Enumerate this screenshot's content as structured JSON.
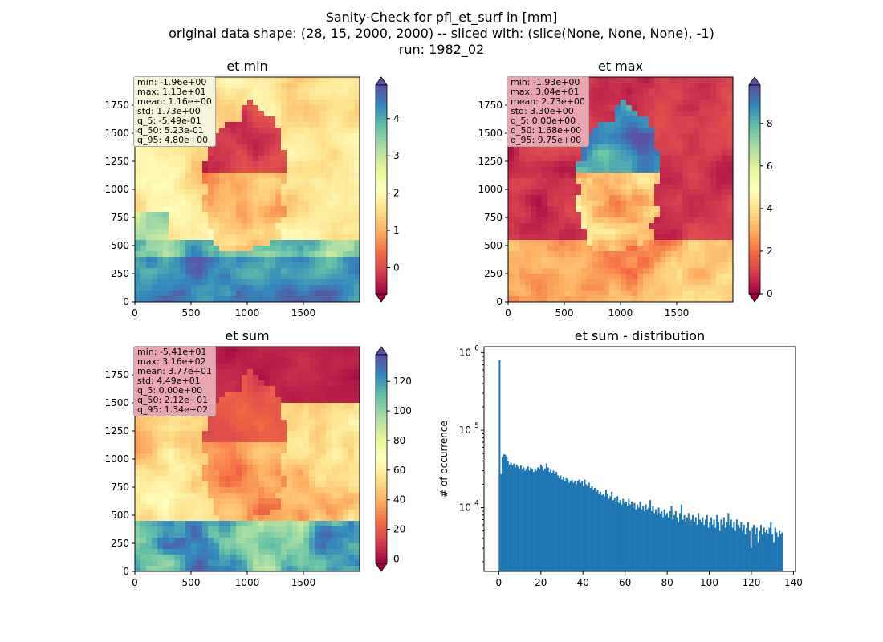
{
  "figure": {
    "title_lines": [
      "Sanity-Check for pfl_et_surf in [mm]",
      "original data shape: (28, 15, 2000, 2000) -- sliced with: (slice(None, None, None), -1)",
      "run: 1982_02"
    ]
  },
  "colormap": "Spectral",
  "panels": [
    {
      "title": "et min",
      "xticks": [
        0,
        500,
        1000,
        1500
      ],
      "yticks": [
        0,
        250,
        500,
        750,
        1000,
        1250,
        1500,
        1750
      ],
      "range": [
        0,
        2000
      ],
      "colorbar": {
        "min": -0.7,
        "max": 4.9,
        "ticks": [
          0,
          1,
          2,
          3,
          4
        ],
        "extend": "both"
      },
      "stats_box_color": "#f5f5dc",
      "stats": [
        "min: -1.96e+00",
        "max: 1.13e+01",
        "mean: 1.16e+00",
        "std: 1.73e+00",
        "q_5: -5.49e-01",
        "q_50: 5.23e-01",
        "q_95: 4.80e+00"
      ]
    },
    {
      "title": "et max",
      "xticks": [
        0,
        500,
        1000,
        1500
      ],
      "yticks": [
        0,
        250,
        500,
        750,
        1000,
        1250,
        1500,
        1750
      ],
      "range": [
        0,
        2000
      ],
      "colorbar": {
        "min": 0,
        "max": 9.8,
        "ticks": [
          0,
          2,
          4,
          6,
          8
        ],
        "extend": "both"
      },
      "stats_box_color": "#e8a6b0",
      "stats": [
        "min: -1.93e+00",
        "max: 3.04e+01",
        "mean: 2.73e+00",
        "std: 3.30e+00",
        "q_5: 0.00e+00",
        "q_50: 1.68e+00",
        "q_95: 9.75e+00"
      ]
    },
    {
      "title": "et sum",
      "xticks": [
        0,
        500,
        1000,
        1500
      ],
      "yticks": [
        0,
        250,
        500,
        750,
        1000,
        1250,
        1500,
        1750
      ],
      "range": [
        0,
        2000
      ],
      "colorbar": {
        "min": -3,
        "max": 138,
        "ticks": [
          0,
          20,
          40,
          60,
          80,
          100,
          120
        ],
        "extend": "both"
      },
      "stats_box_color": "#e8a6b0",
      "stats": [
        "min: -5.41e+01",
        "max: 3.16e+02",
        "mean: 3.77e+01",
        "std: 4.49e+01",
        "q_5: 0.00e+00",
        "q_50: 2.12e+01",
        "q_95: 1.34e+02"
      ]
    }
  ],
  "chart_data": {
    "type": "bar",
    "title": "et sum - distribution",
    "xlabel": "",
    "ylabel": "# of occurrence",
    "yscale": "log",
    "xlim": [
      -7,
      141
    ],
    "ylim": [
      1500,
      1200000
    ],
    "xticks": [
      0,
      20,
      40,
      60,
      80,
      100,
      120,
      140
    ],
    "yticks": [
      10000,
      100000,
      1000000
    ],
    "ytick_labels": [
      "10",
      "10",
      "10"
    ],
    "ytick_exponents": [
      "4",
      "5",
      "6"
    ],
    "bar_color": "#1f77b4",
    "bin_width": 0.675,
    "bins": [
      {
        "x": 0.0,
        "y": 800000
      },
      {
        "x": 0.7,
        "y": 27000
      },
      {
        "x": 1.4,
        "y": 45000
      },
      {
        "x": 2.0,
        "y": 49000
      },
      {
        "x": 2.7,
        "y": 48000
      },
      {
        "x": 3.4,
        "y": 45000
      },
      {
        "x": 4.0,
        "y": 40000
      },
      {
        "x": 4.7,
        "y": 36000
      },
      {
        "x": 5.4,
        "y": 38000
      },
      {
        "x": 6.1,
        "y": 35000
      },
      {
        "x": 6.8,
        "y": 37000
      },
      {
        "x": 7.4,
        "y": 33000
      },
      {
        "x": 8.1,
        "y": 36000
      },
      {
        "x": 8.8,
        "y": 34000
      },
      {
        "x": 9.4,
        "y": 32000
      },
      {
        "x": 10.1,
        "y": 35000
      },
      {
        "x": 10.8,
        "y": 31000
      },
      {
        "x": 11.5,
        "y": 33000
      },
      {
        "x": 12.2,
        "y": 30000
      },
      {
        "x": 12.8,
        "y": 32000
      },
      {
        "x": 13.5,
        "y": 34000
      },
      {
        "x": 14.2,
        "y": 30000
      },
      {
        "x": 14.8,
        "y": 33000
      },
      {
        "x": 15.5,
        "y": 31000
      },
      {
        "x": 16.2,
        "y": 29000
      },
      {
        "x": 16.9,
        "y": 32000
      },
      {
        "x": 17.6,
        "y": 30000
      },
      {
        "x": 18.2,
        "y": 33000
      },
      {
        "x": 18.9,
        "y": 31000
      },
      {
        "x": 19.6,
        "y": 36000
      },
      {
        "x": 20.2,
        "y": 34000
      },
      {
        "x": 20.9,
        "y": 30000
      },
      {
        "x": 21.6,
        "y": 32000
      },
      {
        "x": 22.3,
        "y": 37000
      },
      {
        "x": 23.0,
        "y": 33000
      },
      {
        "x": 23.6,
        "y": 29000
      },
      {
        "x": 24.3,
        "y": 31000
      },
      {
        "x": 25.0,
        "y": 28000
      },
      {
        "x": 25.6,
        "y": 30000
      },
      {
        "x": 26.3,
        "y": 27000
      },
      {
        "x": 27.0,
        "y": 29000
      },
      {
        "x": 27.7,
        "y": 26000
      },
      {
        "x": 28.4,
        "y": 24000
      },
      {
        "x": 29.0,
        "y": 26000
      },
      {
        "x": 29.7,
        "y": 23000
      },
      {
        "x": 30.4,
        "y": 25000
      },
      {
        "x": 31.0,
        "y": 22000
      },
      {
        "x": 31.7,
        "y": 24000
      },
      {
        "x": 32.4,
        "y": 23000
      },
      {
        "x": 33.1,
        "y": 21000
      },
      {
        "x": 33.8,
        "y": 22000
      },
      {
        "x": 34.4,
        "y": 23000
      },
      {
        "x": 35.1,
        "y": 21000
      },
      {
        "x": 35.8,
        "y": 22000
      },
      {
        "x": 36.4,
        "y": 20000
      },
      {
        "x": 37.1,
        "y": 22000
      },
      {
        "x": 37.8,
        "y": 23000
      },
      {
        "x": 38.5,
        "y": 21000
      },
      {
        "x": 39.2,
        "y": 22000
      },
      {
        "x": 39.8,
        "y": 19000
      },
      {
        "x": 40.5,
        "y": 23000
      },
      {
        "x": 41.2,
        "y": 20000
      },
      {
        "x": 41.8,
        "y": 19000
      },
      {
        "x": 42.5,
        "y": 21000
      },
      {
        "x": 43.2,
        "y": 18000
      },
      {
        "x": 43.9,
        "y": 19000
      },
      {
        "x": 44.6,
        "y": 17000
      },
      {
        "x": 45.2,
        "y": 18000
      },
      {
        "x": 45.9,
        "y": 16000
      },
      {
        "x": 46.6,
        "y": 17000
      },
      {
        "x": 47.2,
        "y": 15000
      },
      {
        "x": 47.9,
        "y": 16000
      },
      {
        "x": 48.6,
        "y": 14500
      },
      {
        "x": 49.3,
        "y": 15000
      },
      {
        "x": 50.0,
        "y": 14000
      },
      {
        "x": 50.6,
        "y": 17000
      },
      {
        "x": 51.3,
        "y": 15000
      },
      {
        "x": 52.0,
        "y": 13000
      },
      {
        "x": 52.6,
        "y": 14000
      },
      {
        "x": 53.3,
        "y": 16000
      },
      {
        "x": 54.0,
        "y": 12500
      },
      {
        "x": 54.7,
        "y": 13500
      },
      {
        "x": 55.4,
        "y": 12000
      },
      {
        "x": 56.0,
        "y": 14000
      },
      {
        "x": 56.7,
        "y": 11500
      },
      {
        "x": 57.4,
        "y": 12500
      },
      {
        "x": 58.0,
        "y": 11000
      },
      {
        "x": 58.7,
        "y": 13000
      },
      {
        "x": 59.4,
        "y": 11500
      },
      {
        "x": 60.1,
        "y": 12000
      },
      {
        "x": 60.8,
        "y": 10500
      },
      {
        "x": 61.4,
        "y": 13000
      },
      {
        "x": 62.1,
        "y": 11000
      },
      {
        "x": 62.8,
        "y": 12000
      },
      {
        "x": 63.4,
        "y": 10000
      },
      {
        "x": 64.1,
        "y": 11500
      },
      {
        "x": 64.8,
        "y": 9500
      },
      {
        "x": 65.5,
        "y": 11000
      },
      {
        "x": 66.2,
        "y": 10000
      },
      {
        "x": 66.8,
        "y": 12000
      },
      {
        "x": 67.5,
        "y": 9500
      },
      {
        "x": 68.2,
        "y": 10500
      },
      {
        "x": 68.8,
        "y": 9000
      },
      {
        "x": 69.5,
        "y": 11000
      },
      {
        "x": 70.2,
        "y": 9500
      },
      {
        "x": 70.9,
        "y": 10000
      },
      {
        "x": 71.6,
        "y": 12500
      },
      {
        "x": 72.2,
        "y": 9000
      },
      {
        "x": 72.9,
        "y": 10500
      },
      {
        "x": 73.6,
        "y": 8500
      },
      {
        "x": 74.2,
        "y": 9500
      },
      {
        "x": 74.9,
        "y": 8000
      },
      {
        "x": 75.6,
        "y": 10000
      },
      {
        "x": 76.3,
        "y": 8500
      },
      {
        "x": 77.0,
        "y": 9000
      },
      {
        "x": 77.6,
        "y": 7500
      },
      {
        "x": 78.3,
        "y": 9500
      },
      {
        "x": 79.0,
        "y": 8000
      },
      {
        "x": 79.6,
        "y": 8500
      },
      {
        "x": 80.3,
        "y": 7500
      },
      {
        "x": 81.0,
        "y": 9000
      },
      {
        "x": 81.7,
        "y": 10500
      },
      {
        "x": 82.4,
        "y": 7000
      },
      {
        "x": 83.0,
        "y": 8000
      },
      {
        "x": 83.7,
        "y": 9000
      },
      {
        "x": 84.4,
        "y": 7500
      },
      {
        "x": 85.0,
        "y": 6500
      },
      {
        "x": 85.7,
        "y": 8500
      },
      {
        "x": 86.4,
        "y": 11000
      },
      {
        "x": 87.1,
        "y": 7000
      },
      {
        "x": 87.8,
        "y": 8000
      },
      {
        "x": 88.4,
        "y": 6500
      },
      {
        "x": 89.1,
        "y": 7500
      },
      {
        "x": 89.8,
        "y": 8500
      },
      {
        "x": 90.4,
        "y": 6000
      },
      {
        "x": 91.1,
        "y": 7000
      },
      {
        "x": 91.8,
        "y": 8000
      },
      {
        "x": 92.5,
        "y": 6500
      },
      {
        "x": 93.2,
        "y": 7500
      },
      {
        "x": 93.8,
        "y": 6000
      },
      {
        "x": 94.5,
        "y": 8500
      },
      {
        "x": 95.2,
        "y": 7000
      },
      {
        "x": 95.8,
        "y": 6500
      },
      {
        "x": 96.5,
        "y": 7500
      },
      {
        "x": 97.2,
        "y": 6000
      },
      {
        "x": 97.9,
        "y": 7000
      },
      {
        "x": 98.6,
        "y": 8000
      },
      {
        "x": 99.2,
        "y": 5500
      },
      {
        "x": 99.9,
        "y": 6500
      },
      {
        "x": 100.6,
        "y": 7500
      },
      {
        "x": 101.2,
        "y": 6000
      },
      {
        "x": 101.9,
        "y": 7000
      },
      {
        "x": 102.6,
        "y": 5500
      },
      {
        "x": 103.3,
        "y": 8000
      },
      {
        "x": 104.0,
        "y": 6500
      },
      {
        "x": 104.6,
        "y": 5000
      },
      {
        "x": 105.3,
        "y": 7000
      },
      {
        "x": 106.0,
        "y": 6000
      },
      {
        "x": 106.6,
        "y": 7500
      },
      {
        "x": 107.3,
        "y": 5500
      },
      {
        "x": 108.0,
        "y": 6500
      },
      {
        "x": 108.7,
        "y": 8500
      },
      {
        "x": 109.4,
        "y": 6000
      },
      {
        "x": 110.0,
        "y": 7000
      },
      {
        "x": 110.7,
        "y": 5500
      },
      {
        "x": 111.4,
        "y": 6500
      },
      {
        "x": 112.0,
        "y": 5000
      },
      {
        "x": 112.7,
        "y": 7000
      },
      {
        "x": 113.4,
        "y": 6000
      },
      {
        "x": 114.1,
        "y": 5500
      },
      {
        "x": 114.8,
        "y": 6500
      },
      {
        "x": 115.4,
        "y": 5000
      },
      {
        "x": 116.1,
        "y": 6000
      },
      {
        "x": 116.8,
        "y": 4500
      },
      {
        "x": 117.4,
        "y": 5500
      },
      {
        "x": 118.1,
        "y": 6500
      },
      {
        "x": 118.8,
        "y": 5000
      },
      {
        "x": 119.5,
        "y": 3000
      },
      {
        "x": 120.2,
        "y": 5500
      },
      {
        "x": 120.8,
        "y": 6000
      },
      {
        "x": 121.5,
        "y": 4500
      },
      {
        "x": 122.2,
        "y": 5500
      },
      {
        "x": 122.8,
        "y": 3500
      },
      {
        "x": 123.5,
        "y": 5000
      },
      {
        "x": 124.2,
        "y": 6000
      },
      {
        "x": 124.9,
        "y": 4500
      },
      {
        "x": 125.6,
        "y": 5500
      },
      {
        "x": 126.2,
        "y": 4800
      },
      {
        "x": 126.9,
        "y": 5200
      },
      {
        "x": 127.6,
        "y": 4600
      },
      {
        "x": 128.2,
        "y": 5500
      },
      {
        "x": 128.9,
        "y": 6500
      },
      {
        "x": 129.6,
        "y": 4500
      },
      {
        "x": 130.3,
        "y": 3500
      },
      {
        "x": 131.0,
        "y": 5500
      },
      {
        "x": 131.6,
        "y": 4800
      },
      {
        "x": 132.3,
        "y": 4200
      },
      {
        "x": 133.0,
        "y": 5000
      },
      {
        "x": 133.6,
        "y": 4500
      },
      {
        "x": 134.3,
        "y": 4800
      }
    ]
  }
}
